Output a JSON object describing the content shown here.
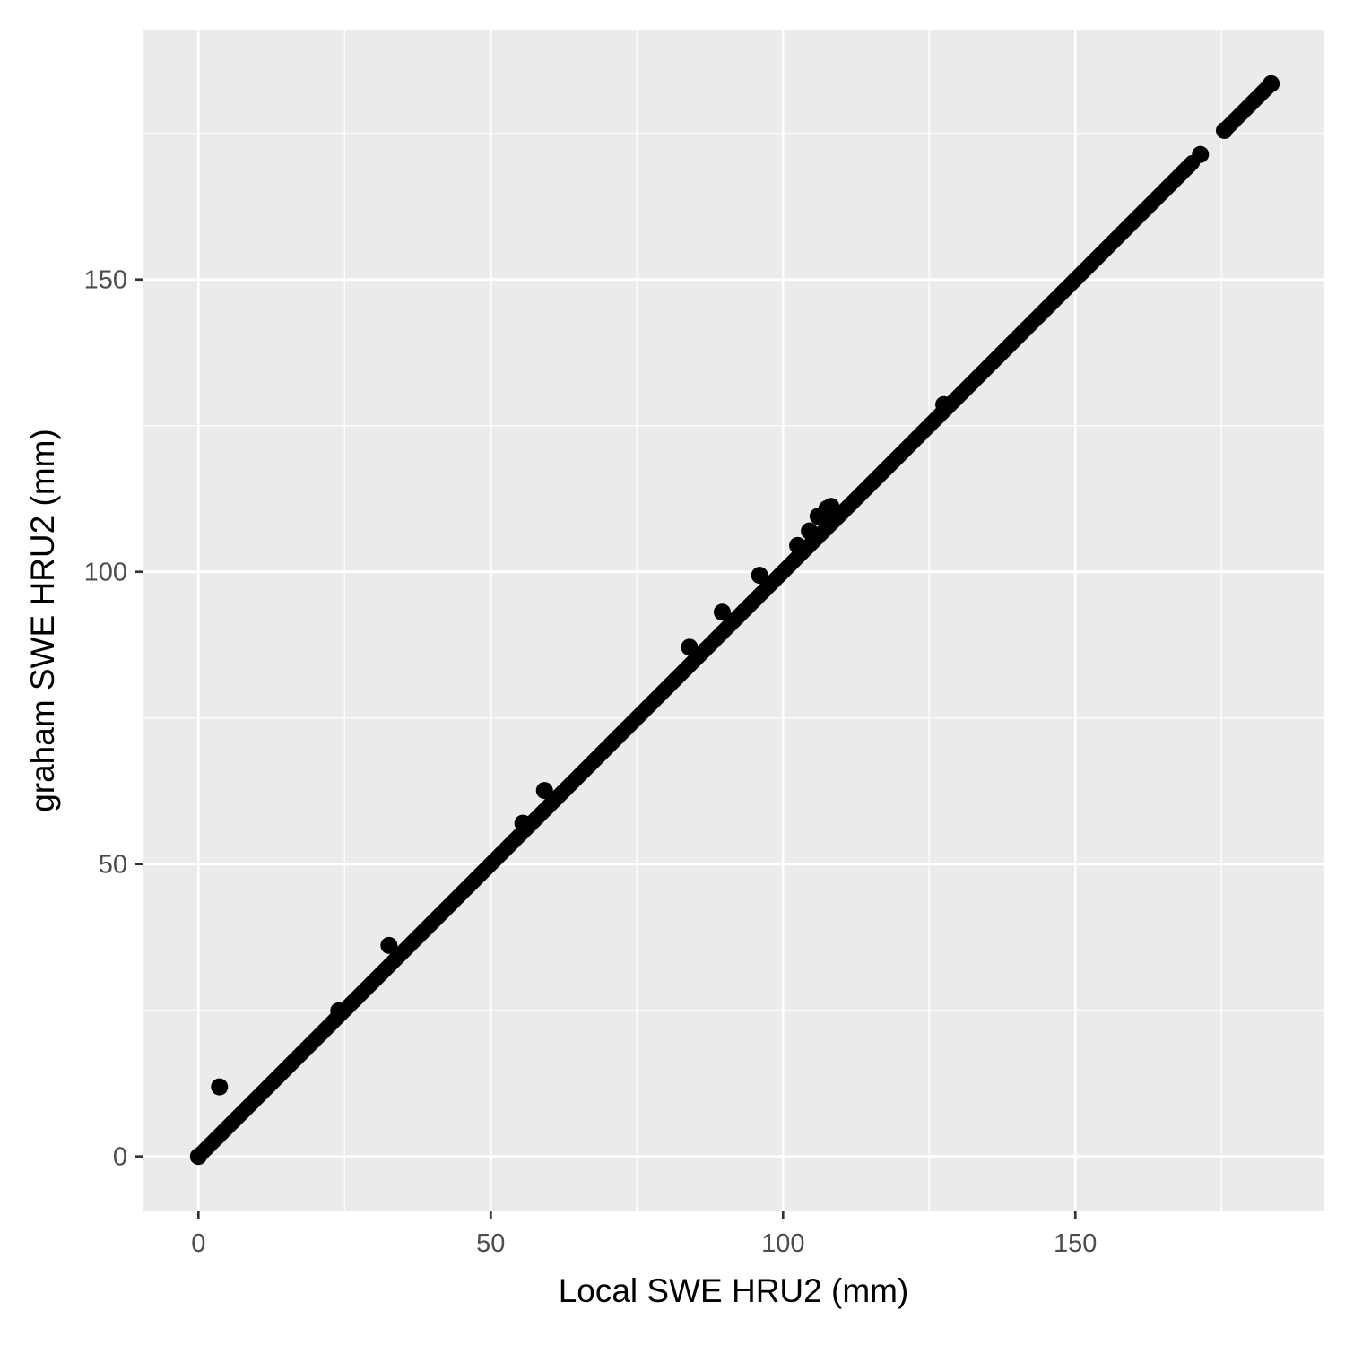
{
  "chart_data": {
    "type": "scatter",
    "title": "",
    "xlabel": "Local SWE HRU2 (mm)",
    "ylabel": "graham SWE HRU2 (mm)",
    "xlim": [
      -9.4,
      192.6
    ],
    "ylim": [
      -9.4,
      192.6
    ],
    "x_ticks": [
      0,
      50,
      100,
      150
    ],
    "y_ticks": [
      0,
      50,
      100,
      150
    ],
    "x_tick_labels": [
      "0",
      "50",
      "100",
      "150"
    ],
    "y_tick_labels": [
      "0",
      "50",
      "100",
      "150"
    ],
    "grid": true,
    "panel_background": "#ebebeb",
    "grid_color": "#ffffff",
    "point_color": "#000000",
    "identity_segments": [
      [
        0,
        170
      ],
      [
        175.5,
        183.5
      ]
    ],
    "points": [
      {
        "x": 0,
        "y": 0
      },
      {
        "x": 3.6,
        "y": 11.9
      },
      {
        "x": 24.0,
        "y": 24.9
      },
      {
        "x": 32.6,
        "y": 36.1
      },
      {
        "x": 55.5,
        "y": 57.0
      },
      {
        "x": 59.2,
        "y": 62.6
      },
      {
        "x": 84.0,
        "y": 87.1
      },
      {
        "x": 89.6,
        "y": 93.1
      },
      {
        "x": 96.0,
        "y": 99.4
      },
      {
        "x": 102.5,
        "y": 104.5
      },
      {
        "x": 104.5,
        "y": 107.0
      },
      {
        "x": 106.0,
        "y": 109.5
      },
      {
        "x": 107.5,
        "y": 110.8
      },
      {
        "x": 108.2,
        "y": 111.2
      },
      {
        "x": 127.5,
        "y": 128.6
      },
      {
        "x": 171.4,
        "y": 171.4
      },
      {
        "x": 175.5,
        "y": 175.5
      },
      {
        "x": 183.5,
        "y": 183.5
      }
    ]
  }
}
